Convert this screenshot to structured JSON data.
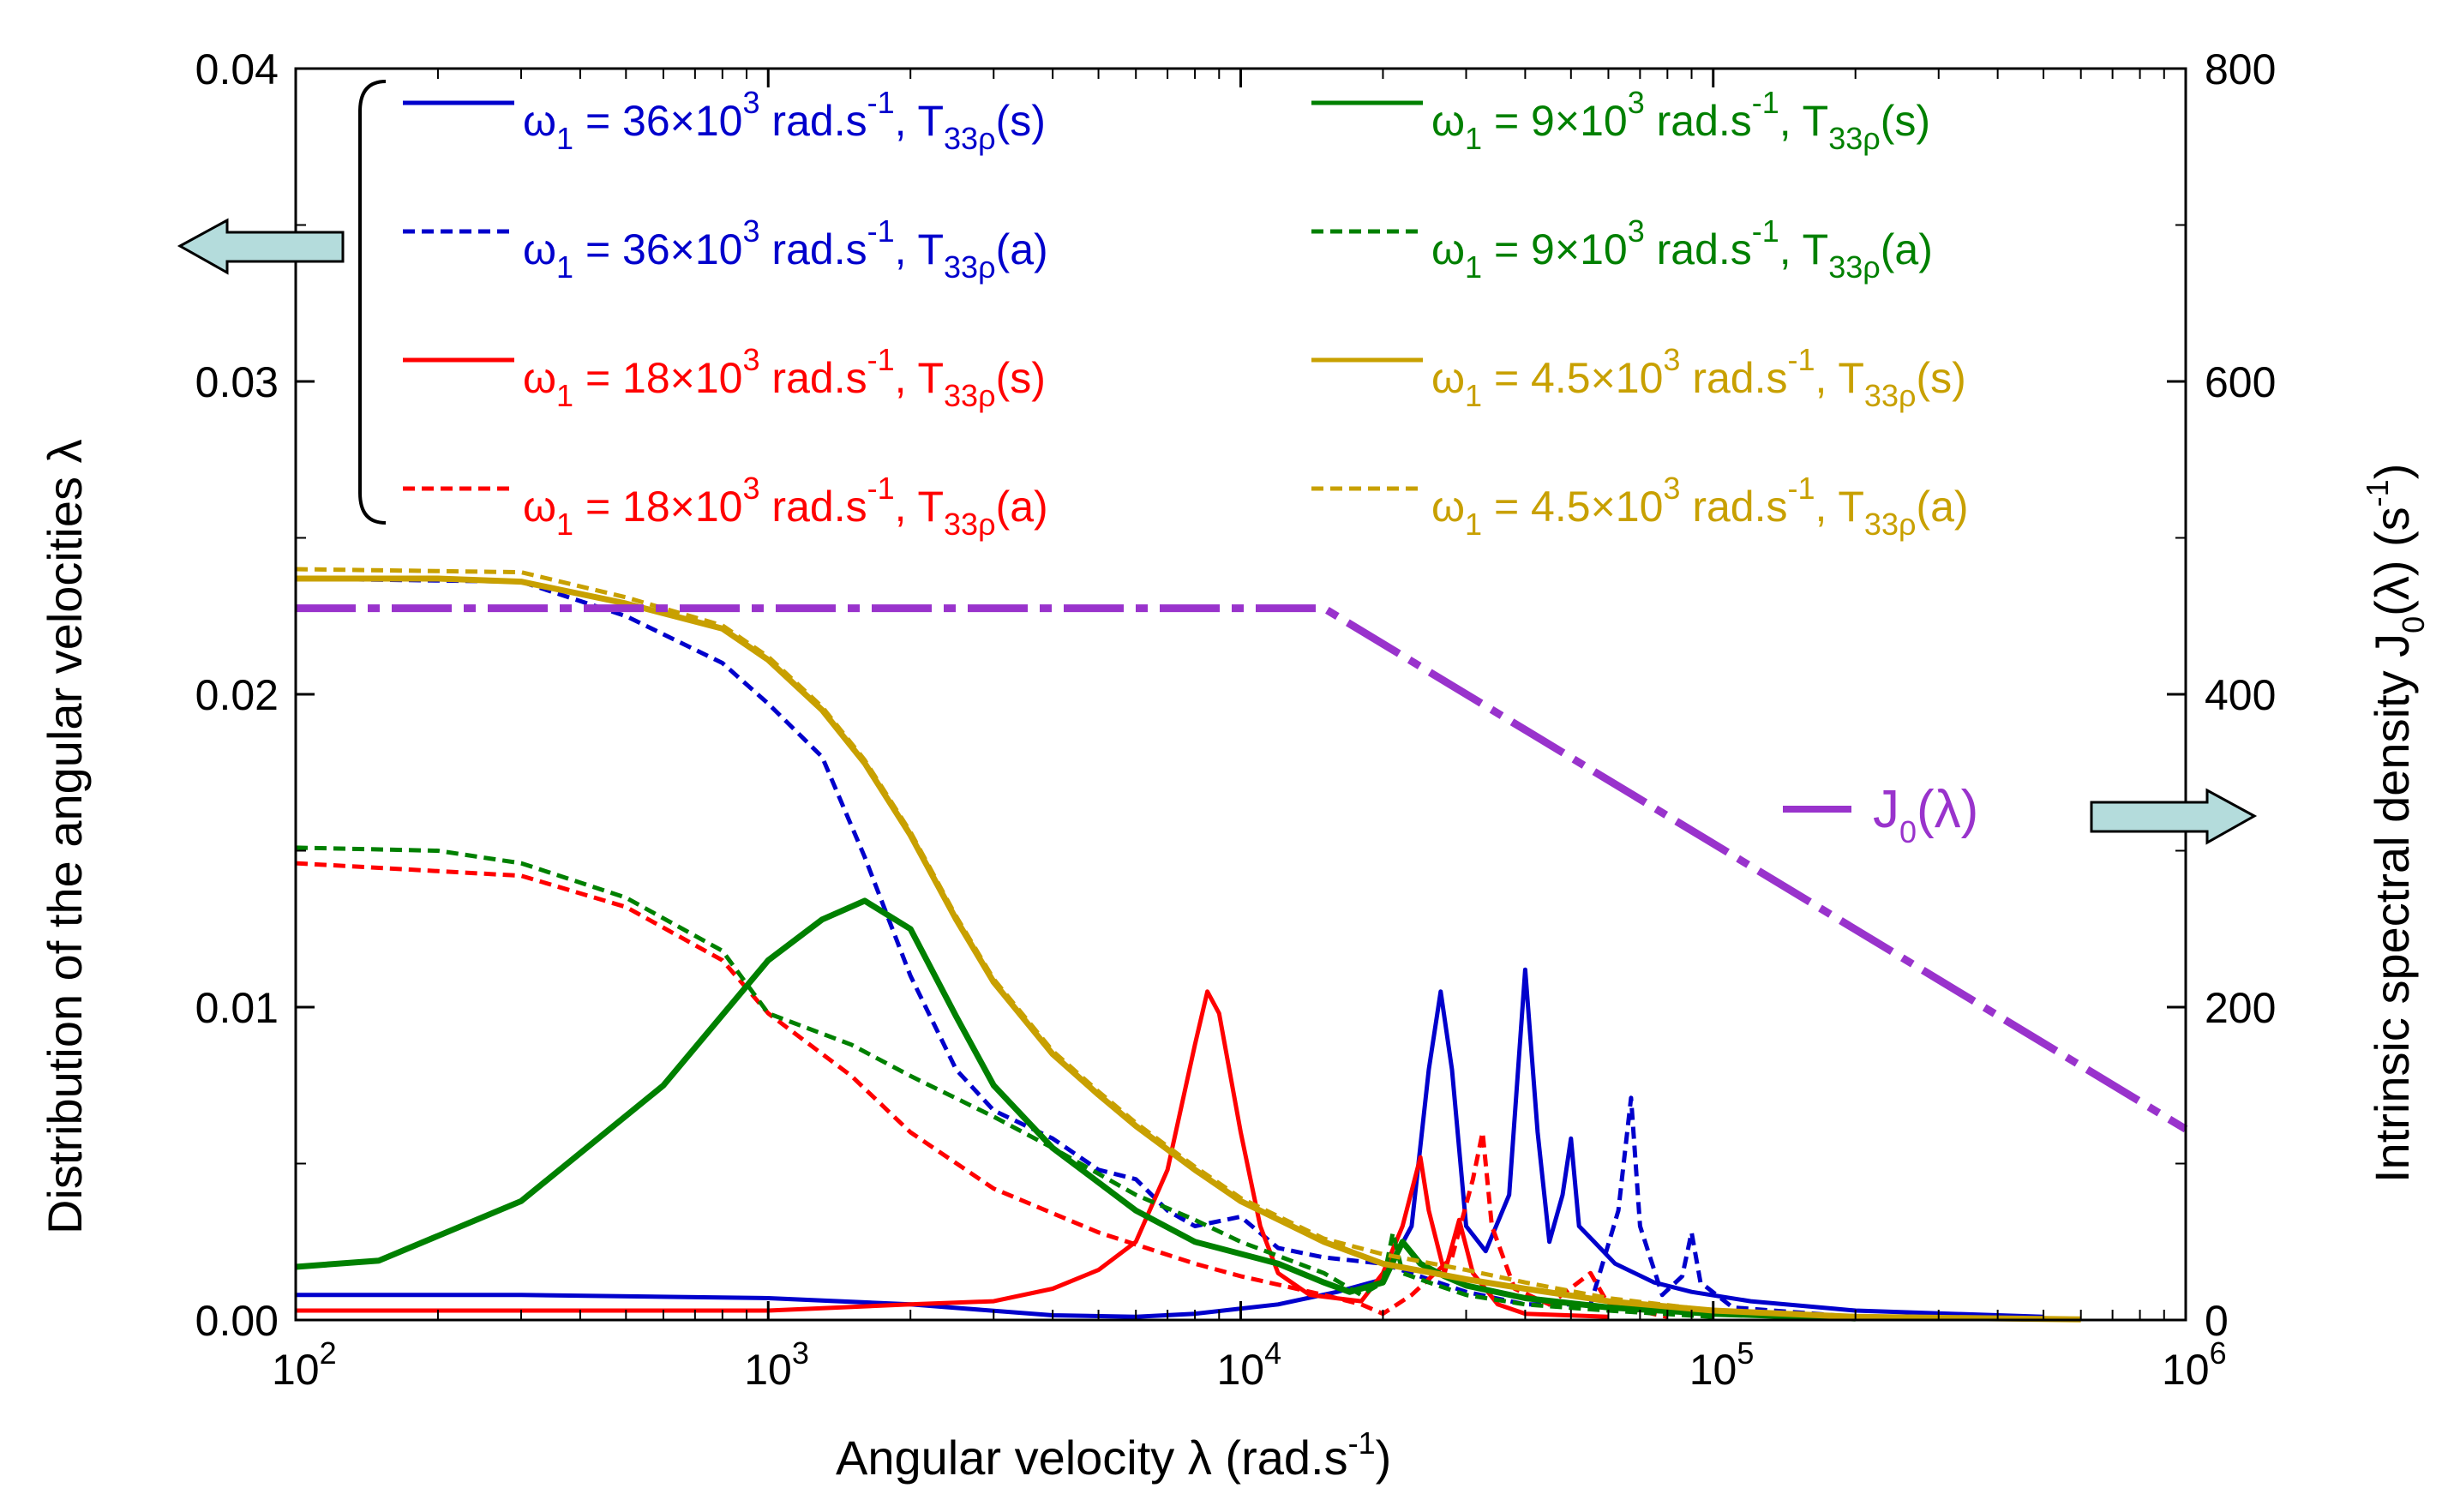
{
  "chart_data": {
    "type": "line",
    "xlabel": "Angular velocity  λ  (rad.s",
    "xlabel_sup": "-1",
    "xlabel_end": ")",
    "ylabel_left": "Distribution of the angular velocities  λ",
    "ylabel_right": "Intrinsic spectral density J",
    "ylabel_right_sub": "0",
    "ylabel_right_mid": "(λ)   (s",
    "ylabel_right_sup": "-1",
    "ylabel_right_end": ")",
    "x_scale": "log",
    "xlim": [
      100,
      1000000
    ],
    "ylim_left": [
      0,
      0.04
    ],
    "ylim_right": [
      0,
      800
    ],
    "x_ticks": [
      {
        "base": "10",
        "exp": "2",
        "value": 100
      },
      {
        "base": "10",
        "exp": "3",
        "value": 1000
      },
      {
        "base": "10",
        "exp": "4",
        "value": 10000
      },
      {
        "base": "10",
        "exp": "5",
        "value": 100000
      },
      {
        "base": "10",
        "exp": "6",
        "value": 1000000
      }
    ],
    "y_left_ticks": [
      {
        "label": "0.00",
        "value": 0
      },
      {
        "label": "0.01",
        "value": 0.01
      },
      {
        "label": "0.02",
        "value": 0.02
      },
      {
        "label": "0.03",
        "value": 0.03
      },
      {
        "label": "0.04",
        "value": 0.04
      }
    ],
    "y_right_ticks": [
      {
        "label": "0",
        "value": 0
      },
      {
        "label": "200",
        "value": 200
      },
      {
        "label": "400",
        "value": 400
      },
      {
        "label": "600",
        "value": 600
      },
      {
        "label": "800",
        "value": 800
      }
    ],
    "annotations": {
      "j0_label": "J",
      "j0_sub": "0",
      "j0_end": "(λ)",
      "left_arrow": "left axis",
      "right_arrow": "right axis"
    },
    "series": [
      {
        "name": "omega1-36e3-s",
        "omega": "36",
        "kind": "s",
        "color": "#0000cc",
        "dash": "solid",
        "axis": "left",
        "points": [
          [
            100,
            0.0008
          ],
          [
            300,
            0.0008
          ],
          [
            1000,
            0.0007
          ],
          [
            2000,
            0.0005
          ],
          [
            4000,
            0.00015
          ],
          [
            6000,
            0.0001
          ],
          [
            8000,
            0.0002
          ],
          [
            12000,
            0.0005
          ],
          [
            16000,
            0.0009
          ],
          [
            20000,
            0.0013
          ],
          [
            23000,
            0.003
          ],
          [
            25000,
            0.008
          ],
          [
            26500,
            0.0105
          ],
          [
            28000,
            0.008
          ],
          [
            30000,
            0.003
          ],
          [
            33000,
            0.0022
          ],
          [
            37000,
            0.004
          ],
          [
            40000,
            0.0112
          ],
          [
            42500,
            0.006
          ],
          [
            45000,
            0.0025
          ],
          [
            48000,
            0.004
          ],
          [
            50000,
            0.0058
          ],
          [
            52000,
            0.003
          ],
          [
            56000,
            0.0025
          ],
          [
            62000,
            0.0018
          ],
          [
            75000,
            0.0012
          ],
          [
            90000,
            0.0009
          ],
          [
            120000,
            0.0006
          ],
          [
            200000,
            0.0003
          ],
          [
            500000,
            0.0001
          ]
        ]
      },
      {
        "name": "omega1-36e3-a",
        "omega": "36",
        "kind": "a",
        "color": "#0000cc",
        "dash": "dash",
        "axis": "left",
        "points": [
          [
            100,
            0.0237
          ],
          [
            300,
            0.0236
          ],
          [
            500,
            0.0225
          ],
          [
            800,
            0.021
          ],
          [
            1000,
            0.0197
          ],
          [
            1300,
            0.018
          ],
          [
            1600,
            0.0148
          ],
          [
            2000,
            0.011
          ],
          [
            2500,
            0.008
          ],
          [
            3000,
            0.0067
          ],
          [
            4000,
            0.0058
          ],
          [
            5000,
            0.0048
          ],
          [
            6000,
            0.0045
          ],
          [
            7000,
            0.0035
          ],
          [
            8000,
            0.003
          ],
          [
            10000,
            0.0033
          ],
          [
            12000,
            0.0023
          ],
          [
            15000,
            0.002
          ],
          [
            20000,
            0.0018
          ],
          [
            25000,
            0.0013
          ],
          [
            30000,
            0.0009
          ],
          [
            40000,
            0.0005
          ],
          [
            55000,
            0.0005
          ],
          [
            63000,
            0.0035
          ],
          [
            67000,
            0.0071
          ],
          [
            70000,
            0.003
          ],
          [
            78000,
            0.0008
          ],
          [
            86000,
            0.0014
          ],
          [
            90000,
            0.0028
          ],
          [
            94000,
            0.0012
          ],
          [
            110000,
            0.0004
          ],
          [
            200000,
            0.0001
          ],
          [
            400000,
            5e-05
          ]
        ]
      },
      {
        "name": "omega1-18e3-s",
        "omega": "18",
        "kind": "s",
        "color": "#ff0000",
        "dash": "solid",
        "axis": "left",
        "points": [
          [
            100,
            0.0003
          ],
          [
            300,
            0.0003
          ],
          [
            1000,
            0.0003
          ],
          [
            2000,
            0.0005
          ],
          [
            3000,
            0.0006
          ],
          [
            4000,
            0.001
          ],
          [
            5000,
            0.0016
          ],
          [
            6000,
            0.0025
          ],
          [
            7000,
            0.0048
          ],
          [
            8000,
            0.0088
          ],
          [
            8500,
            0.0105
          ],
          [
            9000,
            0.0098
          ],
          [
            10000,
            0.006
          ],
          [
            11000,
            0.003
          ],
          [
            12000,
            0.0015
          ],
          [
            14000,
            0.0008
          ],
          [
            18000,
            0.0006
          ],
          [
            20000,
            0.0015
          ],
          [
            22000,
            0.003
          ],
          [
            24000,
            0.0052
          ],
          [
            25000,
            0.0035
          ],
          [
            27000,
            0.0015
          ],
          [
            29000,
            0.0032
          ],
          [
            31000,
            0.0015
          ],
          [
            35000,
            0.0005
          ],
          [
            40000,
            0.0002
          ],
          [
            60000,
            0.0001
          ]
        ]
      },
      {
        "name": "omega1-18e3-a",
        "omega": "18",
        "kind": "a",
        "color": "#ff0000",
        "dash": "dash",
        "axis": "left",
        "points": [
          [
            100,
            0.0146
          ],
          [
            300,
            0.0142
          ],
          [
            500,
            0.0132
          ],
          [
            800,
            0.0115
          ],
          [
            1000,
            0.0098
          ],
          [
            1500,
            0.0078
          ],
          [
            2000,
            0.006
          ],
          [
            3000,
            0.0042
          ],
          [
            5000,
            0.0028
          ],
          [
            8000,
            0.0018
          ],
          [
            10000,
            0.0014
          ],
          [
            15000,
            0.0008
          ],
          [
            18000,
            0.0005
          ],
          [
            20000,
            0.0002
          ],
          [
            23000,
            0.0008
          ],
          [
            28000,
            0.002
          ],
          [
            31000,
            0.0045
          ],
          [
            32500,
            0.006
          ],
          [
            34000,
            0.003
          ],
          [
            38000,
            0.001
          ],
          [
            45000,
            0.0005
          ],
          [
            55000,
            0.0015
          ],
          [
            60000,
            0.0005
          ],
          [
            80000,
            0.0001
          ]
        ]
      },
      {
        "name": "omega1-9e3-s",
        "omega": "9",
        "kind": "s",
        "color": "#008000",
        "dash": "solid",
        "axis": "left",
        "points": [
          [
            100,
            0.0017
          ],
          [
            150,
            0.0019
          ],
          [
            300,
            0.0038
          ],
          [
            600,
            0.0075
          ],
          [
            1000,
            0.0115
          ],
          [
            1300,
            0.0128
          ],
          [
            1600,
            0.0134
          ],
          [
            2000,
            0.0125
          ],
          [
            2500,
            0.0097
          ],
          [
            3000,
            0.0075
          ],
          [
            4000,
            0.0055
          ],
          [
            6000,
            0.0035
          ],
          [
            8000,
            0.0025
          ],
          [
            12000,
            0.0018
          ],
          [
            15000,
            0.0012
          ],
          [
            17000,
            0.0009
          ],
          [
            20000,
            0.0012
          ],
          [
            22000,
            0.0025
          ],
          [
            24000,
            0.0018
          ],
          [
            27000,
            0.0014
          ],
          [
            30000,
            0.0011
          ],
          [
            40000,
            0.0007
          ],
          [
            60000,
            0.0004
          ],
          [
            100000,
            0.0002
          ],
          [
            200000,
            5e-05
          ]
        ]
      },
      {
        "name": "omega1-9e3-a",
        "omega": "9",
        "kind": "a",
        "color": "#008000",
        "dash": "dash",
        "axis": "left",
        "points": [
          [
            100,
            0.0151
          ],
          [
            200,
            0.015
          ],
          [
            300,
            0.0146
          ],
          [
            500,
            0.0135
          ],
          [
            800,
            0.0118
          ],
          [
            1000,
            0.0098
          ],
          [
            1500,
            0.0088
          ],
          [
            2000,
            0.0078
          ],
          [
            3000,
            0.0065
          ],
          [
            4000,
            0.0055
          ],
          [
            6000,
            0.004
          ],
          [
            8000,
            0.0032
          ],
          [
            10000,
            0.0025
          ],
          [
            15000,
            0.0015
          ],
          [
            18000,
            0.0008
          ],
          [
            20000,
            0.0012
          ],
          [
            21000,
            0.0028
          ],
          [
            22000,
            0.0015
          ],
          [
            25000,
            0.0012
          ],
          [
            30000,
            0.0008
          ],
          [
            40000,
            0.0005
          ],
          [
            60000,
            0.0003
          ],
          [
            100000,
            0.0001
          ]
        ]
      },
      {
        "name": "omega1-4.5e3-s",
        "omega": "4.5",
        "kind": "s",
        "color": "#c8a000",
        "dash": "solid",
        "axis": "left",
        "points": [
          [
            100,
            0.0237
          ],
          [
            200,
            0.0237
          ],
          [
            300,
            0.0236
          ],
          [
            500,
            0.0229
          ],
          [
            800,
            0.0221
          ],
          [
            1000,
            0.0211
          ],
          [
            1300,
            0.0195
          ],
          [
            1600,
            0.0178
          ],
          [
            2000,
            0.0155
          ],
          [
            2500,
            0.0128
          ],
          [
            3000,
            0.0108
          ],
          [
            4000,
            0.0085
          ],
          [
            5000,
            0.0072
          ],
          [
            6000,
            0.0062
          ],
          [
            8000,
            0.0048
          ],
          [
            10000,
            0.0038
          ],
          [
            15000,
            0.0025
          ],
          [
            20000,
            0.0018
          ],
          [
            30000,
            0.0013
          ],
          [
            40000,
            0.001
          ],
          [
            60000,
            0.0006
          ],
          [
            100000,
            0.0003
          ],
          [
            200000,
            0.0001
          ],
          [
            600000,
            2e-05
          ]
        ]
      },
      {
        "name": "omega1-4.5e3-a",
        "omega": "4.5",
        "kind": "a",
        "color": "#c8a000",
        "dash": "dash",
        "axis": "left",
        "points": [
          [
            100,
            0.024
          ],
          [
            300,
            0.0239
          ],
          [
            500,
            0.0231
          ],
          [
            800,
            0.0222
          ],
          [
            1000,
            0.0212
          ],
          [
            1300,
            0.0196
          ],
          [
            1600,
            0.0179
          ],
          [
            2000,
            0.0156
          ],
          [
            2500,
            0.0129
          ],
          [
            3000,
            0.0109
          ],
          [
            4000,
            0.0086
          ],
          [
            5000,
            0.0073
          ],
          [
            6000,
            0.0063
          ],
          [
            8000,
            0.0049
          ],
          [
            10000,
            0.0039
          ],
          [
            15000,
            0.0026
          ],
          [
            20000,
            0.0021
          ],
          [
            30000,
            0.0016
          ],
          [
            40000,
            0.0012
          ],
          [
            60000,
            0.0007
          ],
          [
            100000,
            0.0003
          ],
          [
            200000,
            0.0001
          ],
          [
            600000,
            2e-05
          ]
        ]
      },
      {
        "name": "J0",
        "color": "#9933cc",
        "dash": "dashdot",
        "axis": "right",
        "points": [
          [
            100,
            455
          ],
          [
            15000,
            455
          ],
          [
            1000000,
            122
          ]
        ]
      }
    ],
    "legend": [
      {
        "series": 0,
        "omega": "36",
        "kind": "s",
        "text1": " = 36×10",
        "text2": "3",
        "text3": " rad.s",
        "text4": "-1",
        "text5": ", T",
        "text6": "33ρ",
        "text7": "(s)"
      },
      {
        "series": 1,
        "omega": "36",
        "kind": "a",
        "text1": " = 36×10",
        "text2": "3",
        "text3": " rad.s",
        "text4": "-1",
        "text5": ", T",
        "text6": "33ρ",
        "text7": "(a)"
      },
      {
        "series": 2,
        "omega": "18",
        "kind": "s",
        "text1": " = 18×10",
        "text2": "3",
        "text3": " rad.s",
        "text4": "-1",
        "text5": ", T",
        "text6": "33ρ",
        "text7": "(s)"
      },
      {
        "series": 3,
        "omega": "18",
        "kind": "a",
        "text1": " = 18×10",
        "text2": "3",
        "text3": " rad.s",
        "text4": "-1",
        "text5": ", T",
        "text6": "33ρ",
        "text7": "(a)"
      },
      {
        "series": 4,
        "omega": "9",
        "kind": "s",
        "text1": " = 9×10",
        "text2": "3",
        "text3": " rad.s",
        "text4": "-1",
        "text5": ", T",
        "text6": "33ρ",
        "text7": "(s)"
      },
      {
        "series": 5,
        "omega": "9",
        "kind": "a",
        "text1": " = 9×10",
        "text2": "3",
        "text3": " rad.s",
        "text4": "-1",
        "text5": ", T",
        "text6": "33ρ",
        "text7": "(a)"
      },
      {
        "series": 6,
        "omega": "4.5",
        "kind": "s",
        "text1": " = 4.5×10",
        "text2": "3",
        "text3": " rad.s",
        "text4": "-1",
        "text5": ", T",
        "text6": "33ρ",
        "text7": "(s)"
      },
      {
        "series": 7,
        "omega": "4.5",
        "kind": "a",
        "text1": " = 4.5×10",
        "text2": "3",
        "text3": " rad.s",
        "text4": "-1",
        "text5": ", T",
        "text6": "33ρ",
        "text7": "(a)"
      }
    ],
    "legend_symbol": "ω",
    "legend_symbol_sub": "1",
    "legend_position": "top-left, two columns, inside plot",
    "grid": false
  }
}
